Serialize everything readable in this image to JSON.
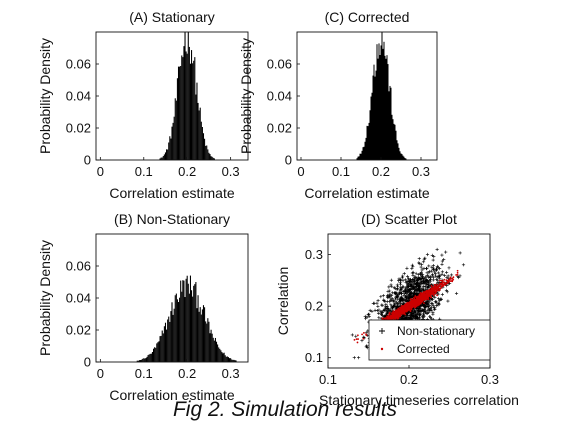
{
  "caption": "Fig 2. Simulation results",
  "chart_data": [
    {
      "type": "histogram",
      "panel": "A",
      "title": "(A) Stationary",
      "xlabel": "Correlation estimate",
      "ylabel": "Probability Density",
      "xlim": [
        -0.01,
        0.34
      ],
      "ylim": [
        0,
        0.08
      ],
      "xticks": [
        "0",
        "0.1",
        "0.2",
        "0.3"
      ],
      "yticks": [
        "0",
        "0.02",
        "0.04",
        "0.06"
      ],
      "color": "#000000",
      "distribution": {
        "mean": 0.2,
        "sd": 0.021,
        "bin_width": 0.0025,
        "peak_density": 0.078,
        "range": [
          0.13,
          0.27
        ]
      }
    },
    {
      "type": "histogram",
      "panel": "B",
      "title": "(B) Non-Stationary",
      "xlabel": "Correlation estimate",
      "ylabel": "Probability Density",
      "xlim": [
        -0.01,
        0.34
      ],
      "ylim": [
        0,
        0.08
      ],
      "xticks": [
        "0",
        "0.1",
        "0.2",
        "0.3"
      ],
      "yticks": [
        "0",
        "0.02",
        "0.04",
        "0.06"
      ],
      "color": "#000000",
      "distribution": {
        "mean": 0.2,
        "sd": 0.04,
        "bin_width": 0.0025,
        "peak_density": 0.048,
        "range": [
          0.07,
          0.33
        ]
      }
    },
    {
      "type": "histogram",
      "panel": "C",
      "title": "(C) Corrected",
      "xlabel": "Correlation estimate",
      "ylabel": "Probability Density",
      "xlim": [
        -0.01,
        0.34
      ],
      "ylim": [
        0,
        0.08
      ],
      "xticks": [
        "0",
        "0.1",
        "0.2",
        "0.3"
      ],
      "yticks": [
        "0",
        "0.02",
        "0.04",
        "0.06"
      ],
      "color": "#000000",
      "distribution": {
        "mean": 0.2,
        "sd": 0.021,
        "bin_width": 0.0025,
        "peak_density": 0.078,
        "range": [
          0.13,
          0.27
        ]
      }
    },
    {
      "type": "scatter",
      "panel": "D",
      "title": "(D) Scatter Plot",
      "xlabel": "Stationary timeseries correlation",
      "ylabel": "Correlation",
      "xlim": [
        0.1,
        0.3
      ],
      "ylim": [
        0.08,
        0.34
      ],
      "xticks": [
        "0.1",
        "0.2",
        "0.3"
      ],
      "yticks": [
        "0.1",
        "0.2",
        "0.3"
      ],
      "legend_position": "bottom-right",
      "series": [
        {
          "name": "Non-stationary",
          "marker": "+",
          "color": "#000000",
          "x_range": [
            0.13,
            0.27
          ],
          "y_range": [
            0.1,
            0.31
          ],
          "relation": "y ≈ x",
          "approx_points": 1500
        },
        {
          "name": "Corrected",
          "marker": ".",
          "color": "#cc0000",
          "x_range": [
            0.13,
            0.26
          ],
          "y_range": [
            0.13,
            0.26
          ],
          "relation": "y = x",
          "approx_points": 1500
        }
      ]
    }
  ]
}
